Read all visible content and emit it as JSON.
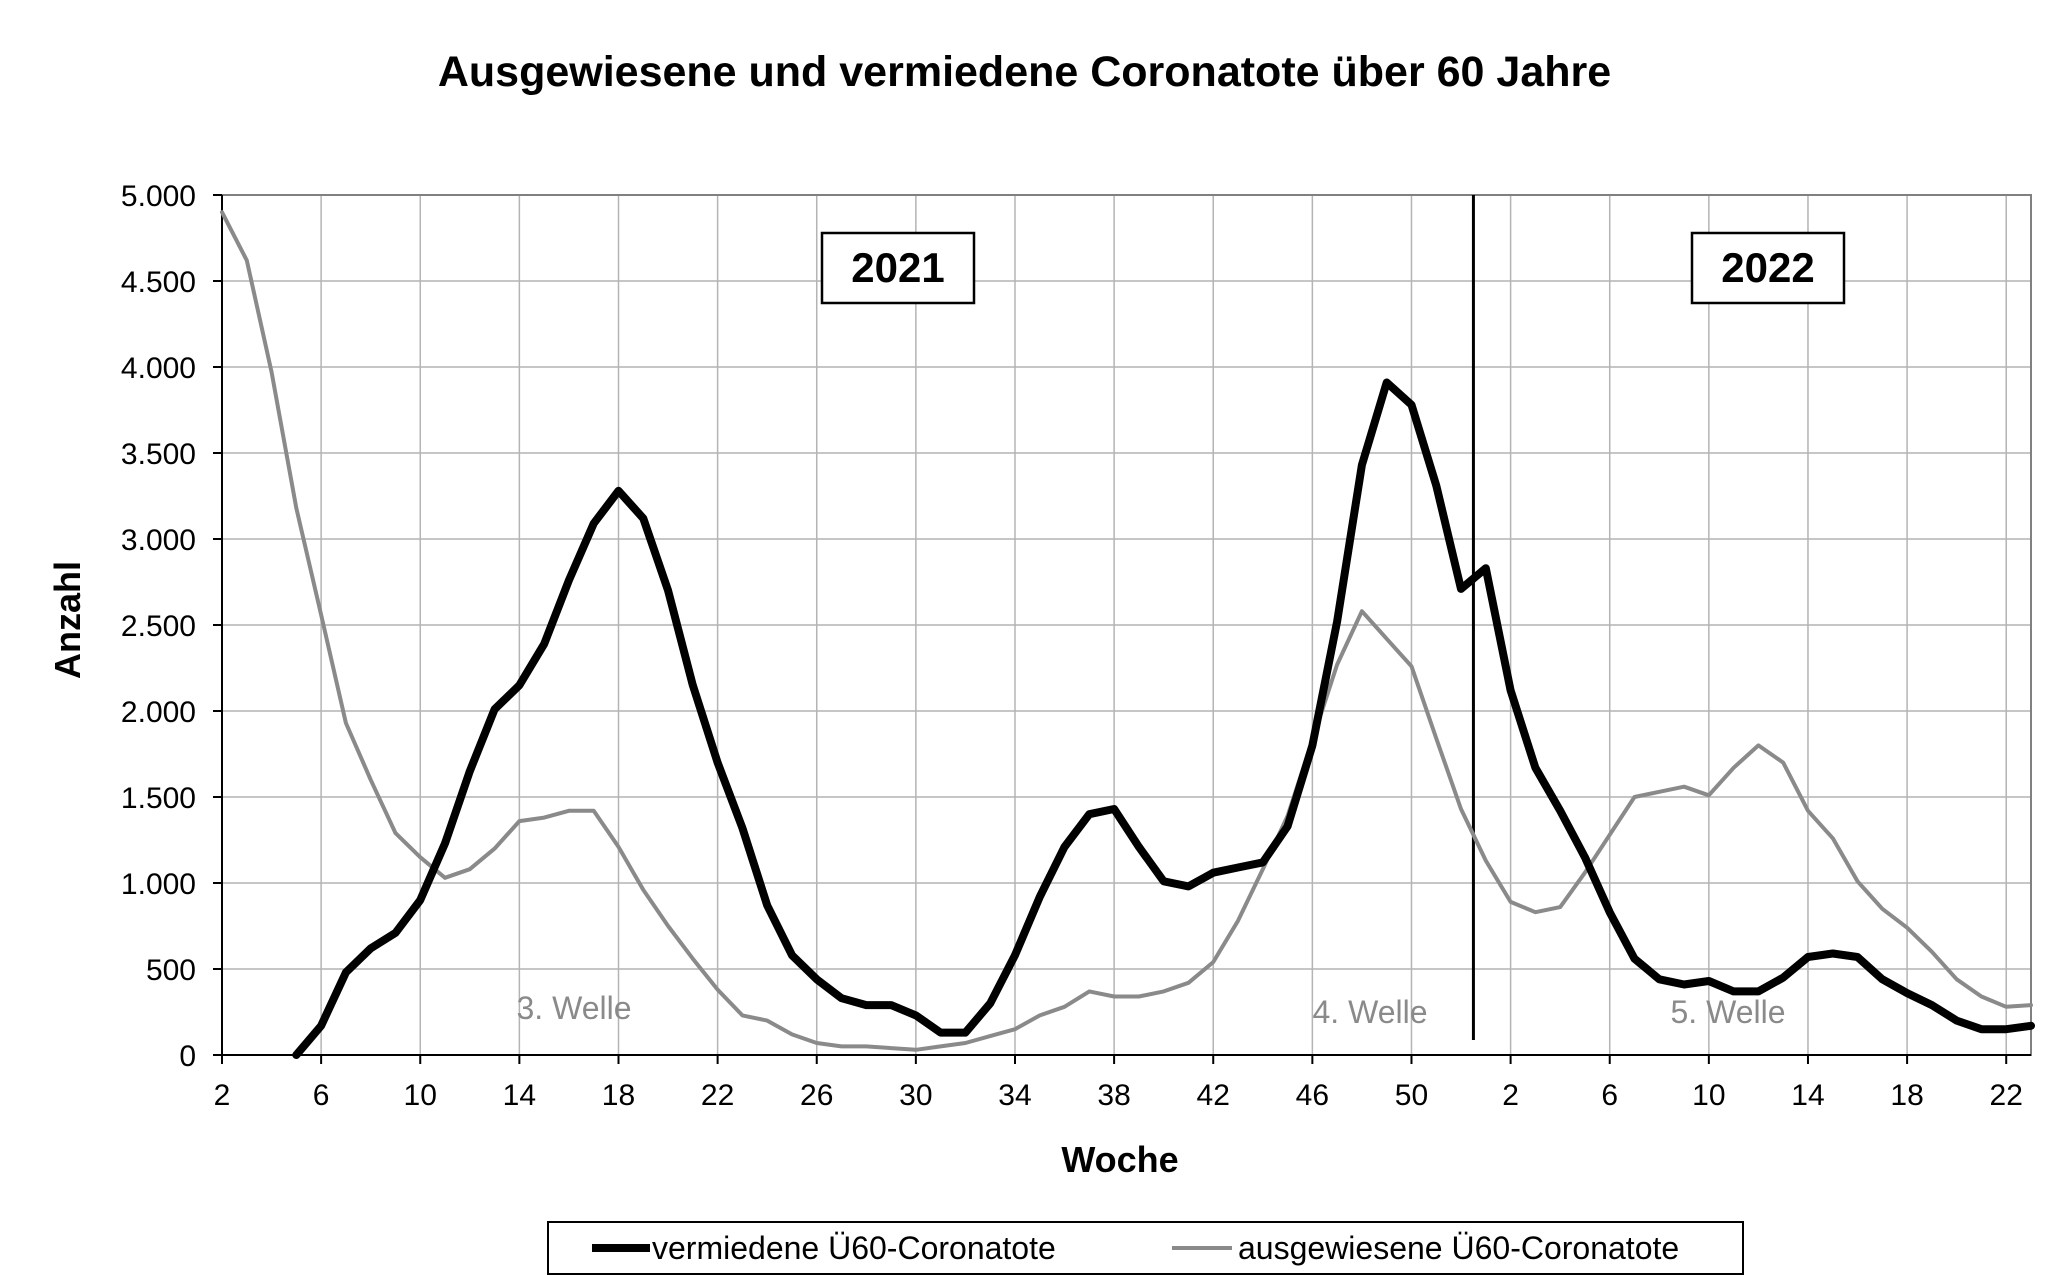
{
  "chart_data": {
    "type": "line",
    "title": "Ausgewiesene und vermiedene Coronatote über 60 Jahre",
    "xlabel": "Woche",
    "ylabel": "Anzahl",
    "ylim": [
      0,
      5000
    ],
    "y_ticks": [
      0,
      500,
      1000,
      1500,
      2000,
      2500,
      3000,
      3500,
      4000,
      4500,
      5000
    ],
    "y_tick_labels": [
      "0",
      "500",
      "1.000",
      "1.500",
      "2.000",
      "2.500",
      "3.000",
      "3.500",
      "4.000",
      "4.500",
      "5.000"
    ],
    "x_tick_labels": [
      "2",
      "6",
      "10",
      "14",
      "18",
      "22",
      "26",
      "30",
      "34",
      "38",
      "42",
      "46",
      "50",
      "2",
      "6",
      "10",
      "14",
      "18",
      "22"
    ],
    "grid": true,
    "legend_position": "bottom",
    "x": [
      "2021-W02",
      "2021-W03",
      "2021-W04",
      "2021-W05",
      "2021-W06",
      "2021-W07",
      "2021-W08",
      "2021-W09",
      "2021-W10",
      "2021-W11",
      "2021-W12",
      "2021-W13",
      "2021-W14",
      "2021-W15",
      "2021-W16",
      "2021-W17",
      "2021-W18",
      "2021-W19",
      "2021-W20",
      "2021-W21",
      "2021-W22",
      "2021-W23",
      "2021-W24",
      "2021-W25",
      "2021-W26",
      "2021-W27",
      "2021-W28",
      "2021-W29",
      "2021-W30",
      "2021-W31",
      "2021-W32",
      "2021-W33",
      "2021-W34",
      "2021-W35",
      "2021-W36",
      "2021-W37",
      "2021-W38",
      "2021-W39",
      "2021-W40",
      "2021-W41",
      "2021-W42",
      "2021-W43",
      "2021-W44",
      "2021-W45",
      "2021-W46",
      "2021-W47",
      "2021-W48",
      "2021-W49",
      "2021-W50",
      "2021-W51",
      "2021-W52",
      "2022-W01",
      "2022-W02",
      "2022-W03",
      "2022-W04",
      "2022-W05",
      "2022-W06",
      "2022-W07",
      "2022-W08",
      "2022-W09",
      "2022-W10",
      "2022-W11",
      "2022-W12",
      "2022-W13",
      "2022-W14",
      "2022-W15",
      "2022-W16",
      "2022-W17",
      "2022-W18",
      "2022-W19",
      "2022-W20",
      "2022-W21",
      "2022-W22",
      "2022-W23"
    ],
    "series": [
      {
        "name": "vermiedene Ü60-Coronatote",
        "color": "#000000",
        "values": [
          null,
          null,
          null,
          0,
          170,
          480,
          620,
          710,
          900,
          1230,
          1650,
          2010,
          2150,
          2390,
          2760,
          3090,
          3280,
          3120,
          2700,
          2150,
          1700,
          1320,
          870,
          580,
          440,
          330,
          290,
          290,
          230,
          130,
          130,
          300,
          580,
          920,
          1210,
          1400,
          1430,
          1210,
          1010,
          980,
          1060,
          1090,
          1120,
          1330,
          1800,
          2520,
          3430,
          3910,
          3780,
          3310,
          2710,
          2830,
          2120,
          1670,
          1420,
          1150,
          830,
          560,
          440,
          410,
          430,
          370,
          370,
          450,
          570,
          590,
          570,
          440,
          360,
          290,
          200,
          150,
          150,
          170
        ]
      },
      {
        "name": "ausgewiesene Ü60-Coronatote",
        "color": "#8a8a8a",
        "values": [
          4900,
          4620,
          3970,
          3180,
          2560,
          1930,
          1600,
          1290,
          1150,
          1030,
          1080,
          1200,
          1360,
          1380,
          1420,
          1420,
          1210,
          960,
          750,
          560,
          380,
          230,
          200,
          120,
          70,
          50,
          50,
          40,
          30,
          50,
          70,
          110,
          150,
          230,
          280,
          370,
          340,
          340,
          370,
          420,
          540,
          780,
          1080,
          1390,
          1830,
          2270,
          2580,
          2420,
          2260,
          1840,
          1430,
          1130,
          890,
          830,
          860,
          1060,
          1280,
          1500,
          1530,
          1560,
          1510,
          1670,
          1800,
          1700,
          1420,
          1260,
          1010,
          850,
          740,
          600,
          440,
          340,
          280,
          290
        ]
      }
    ],
    "year_labels": [
      "2021",
      "2022"
    ],
    "wave_labels": [
      "3. Welle",
      "4. Welle",
      "5. Welle"
    ]
  }
}
